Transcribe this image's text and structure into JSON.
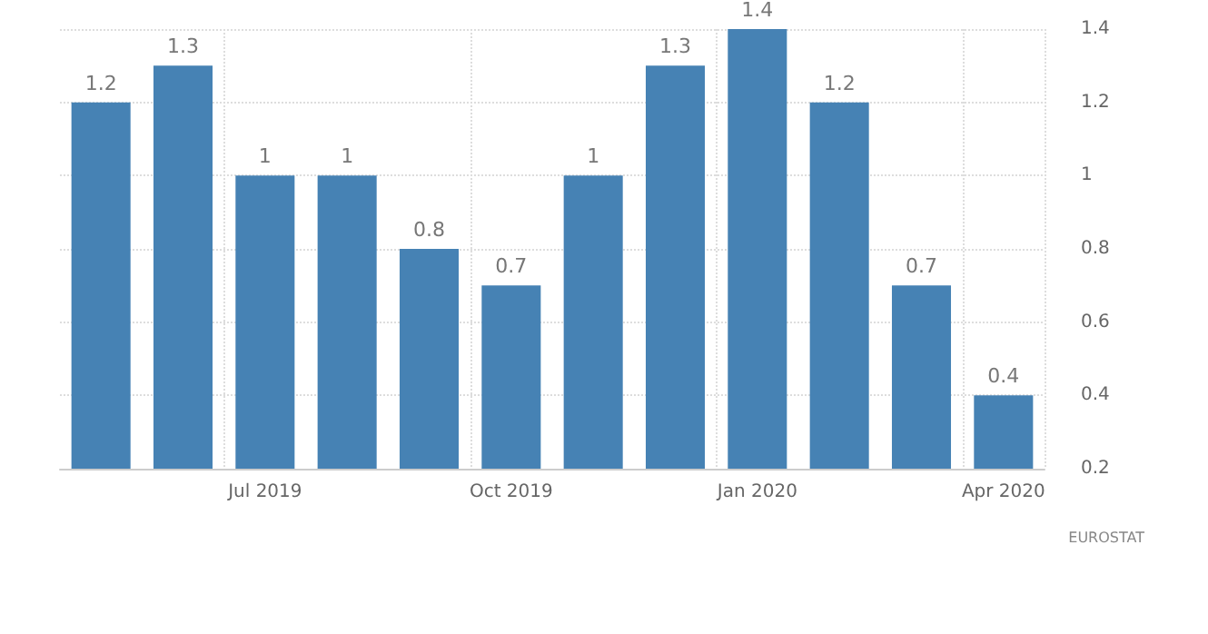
{
  "chart_data": {
    "type": "bar",
    "categories": [
      null,
      null,
      "Jul 2019",
      null,
      null,
      "Oct 2019",
      null,
      null,
      "Jan 2020",
      null,
      null,
      "Apr 2020"
    ],
    "values": [
      1.2,
      1.3,
      1,
      1,
      0.8,
      0.7,
      1,
      1.3,
      1.4,
      1.2,
      0.7,
      0.4
    ],
    "color": "#4682b4",
    "ylim": [
      0.2,
      1.4
    ],
    "yticks": [
      0.2,
      0.4,
      0.6,
      0.8,
      1,
      1.2,
      1.4
    ],
    "data_labels": true,
    "grid": true,
    "annotations": [
      "EUROSTAT"
    ]
  }
}
